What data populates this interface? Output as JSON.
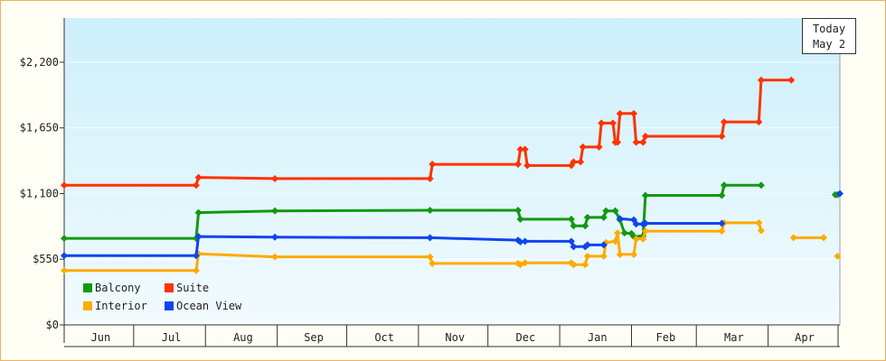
{
  "chart_data": {
    "type": "line",
    "title": "",
    "xlabel": "",
    "ylabel": "",
    "y_ticks": [
      "$0",
      "$550",
      "$1,100",
      "$1,650",
      "$2,200"
    ],
    "y_tick_values": [
      0,
      550,
      1100,
      1650,
      2200
    ],
    "ylim": [
      0,
      2570
    ],
    "x_months": [
      "Jun",
      "Jul",
      "Aug",
      "Sep",
      "Oct",
      "Nov",
      "Dec",
      "Jan",
      "Feb",
      "Mar",
      "Apr"
    ],
    "grid": true,
    "legend_position": "bottom-left",
    "today": {
      "line1": "Today",
      "line2": "May 2"
    },
    "series": [
      {
        "name": "Balcony",
        "color": "#119911",
        "points": [
          [
            "Jun 1",
            725
          ],
          [
            "Jul 28",
            725
          ],
          [
            "Jul 29",
            940
          ],
          [
            "Aug 31",
            955
          ],
          [
            "Nov 6",
            960
          ],
          [
            "Dec 14",
            960
          ],
          [
            "Dec 15",
            885
          ],
          [
            "Jan 6",
            885
          ],
          [
            "Jan 7",
            830
          ],
          [
            "Jan 12",
            830
          ],
          [
            "Jan 13",
            900
          ],
          [
            "Jan 20",
            900
          ],
          [
            "Jan 21",
            955
          ],
          [
            "Jan 25",
            955
          ],
          [
            "Jan 27",
            880
          ],
          [
            "Jan 29",
            770
          ],
          [
            "Feb 1",
            765
          ],
          [
            "Feb 2",
            740
          ],
          [
            "Feb 6",
            745
          ],
          [
            "Feb 7",
            1085
          ],
          [
            "Mar 12",
            1085
          ],
          [
            "Mar 13",
            1170
          ],
          [
            "Mar 29",
            1170
          ]
        ]
      },
      {
        "name": "Suite",
        "color": "#ff3300",
        "points": [
          [
            "Jun 1",
            1170
          ],
          [
            "Jul 28",
            1170
          ],
          [
            "Jul 29",
            1235
          ],
          [
            "Aug 31",
            1225
          ],
          [
            "Nov 6",
            1225
          ],
          [
            "Nov 7",
            1345
          ],
          [
            "Dec 14",
            1345
          ],
          [
            "Dec 15",
            1470
          ],
          [
            "Dec 17",
            1470
          ],
          [
            "Dec 18",
            1335
          ],
          [
            "Jan 6",
            1335
          ],
          [
            "Jan 7",
            1365
          ],
          [
            "Jan 10",
            1365
          ],
          [
            "Jan 11",
            1490
          ],
          [
            "Jan 18",
            1490
          ],
          [
            "Jan 19",
            1690
          ],
          [
            "Jan 24",
            1690
          ],
          [
            "Jan 25",
            1530
          ],
          [
            "Jan 26",
            1530
          ],
          [
            "Jan 27",
            1770
          ],
          [
            "Feb 2",
            1770
          ],
          [
            "Feb 3",
            1530
          ],
          [
            "Feb 6",
            1530
          ],
          [
            "Feb 7",
            1580
          ],
          [
            "Mar 12",
            1580
          ],
          [
            "Mar 13",
            1700
          ],
          [
            "Mar 28",
            1700
          ],
          [
            "Mar 29",
            2050
          ],
          [
            "Apr 11",
            2050
          ]
        ]
      },
      {
        "name": "Interior",
        "color": "#ffaa00",
        "points": [
          [
            "Jun 1",
            455
          ],
          [
            "Jul 28",
            455
          ],
          [
            "Jul 29",
            595
          ],
          [
            "Aug 31",
            570
          ],
          [
            "Nov 6",
            570
          ],
          [
            "Nov 7",
            515
          ],
          [
            "Dec 14",
            515
          ],
          [
            "Dec 15",
            505
          ],
          [
            "Dec 17",
            520
          ],
          [
            "Jan 6",
            520
          ],
          [
            "Jan 7",
            505
          ],
          [
            "Jan 12",
            505
          ],
          [
            "Jan 13",
            575
          ],
          [
            "Jan 20",
            575
          ],
          [
            "Jan 21",
            690
          ],
          [
            "Jan 25",
            700
          ],
          [
            "Jan 26",
            770
          ],
          [
            "Jan 27",
            590
          ],
          [
            "Feb 2",
            590
          ],
          [
            "Feb 3",
            720
          ],
          [
            "Feb 6",
            720
          ],
          [
            "Feb 7",
            785
          ],
          [
            "Mar 12",
            785
          ],
          [
            "Mar 13",
            855
          ],
          [
            "Mar 28",
            855
          ],
          [
            "Mar 29",
            790
          ],
          [
            "Apr 11",
            null
          ],
          [
            "Apr 12",
            730
          ],
          [
            "Apr 25",
            730
          ],
          [
            "Apr 26",
            null
          ],
          [
            "May 1",
            575
          ]
        ]
      },
      {
        "name": "Ocean View",
        "color": "#1144ee",
        "points": [
          [
            "Jun 1",
            580
          ],
          [
            "Jul 28",
            580
          ],
          [
            "Jul 29",
            740
          ],
          [
            "Aug 31",
            735
          ],
          [
            "Nov 6",
            730
          ],
          [
            "Dec 14",
            710
          ],
          [
            "Dec 15",
            695
          ],
          [
            "Dec 17",
            700
          ],
          [
            "Jan 6",
            700
          ],
          [
            "Jan 7",
            655
          ],
          [
            "Jan 12",
            655
          ],
          [
            "Jan 13",
            670
          ],
          [
            "Jan 20",
            670
          ],
          [
            "Jan 21",
            null
          ],
          [
            "Jan 27",
            890
          ],
          [
            "Feb 2",
            880
          ],
          [
            "Feb 3",
            845
          ],
          [
            "Feb 6",
            845
          ],
          [
            "Feb 7",
            850
          ],
          [
            "Mar 12",
            850
          ]
        ]
      }
    ],
    "series_tail": [
      {
        "name": "Balcony",
        "points": [
          [
            "Apr 30",
            1090
          ],
          [
            "May 1",
            1090
          ]
        ]
      },
      {
        "name": "Ocean View",
        "points": [
          [
            "May 2",
            1100
          ]
        ]
      }
    ]
  }
}
